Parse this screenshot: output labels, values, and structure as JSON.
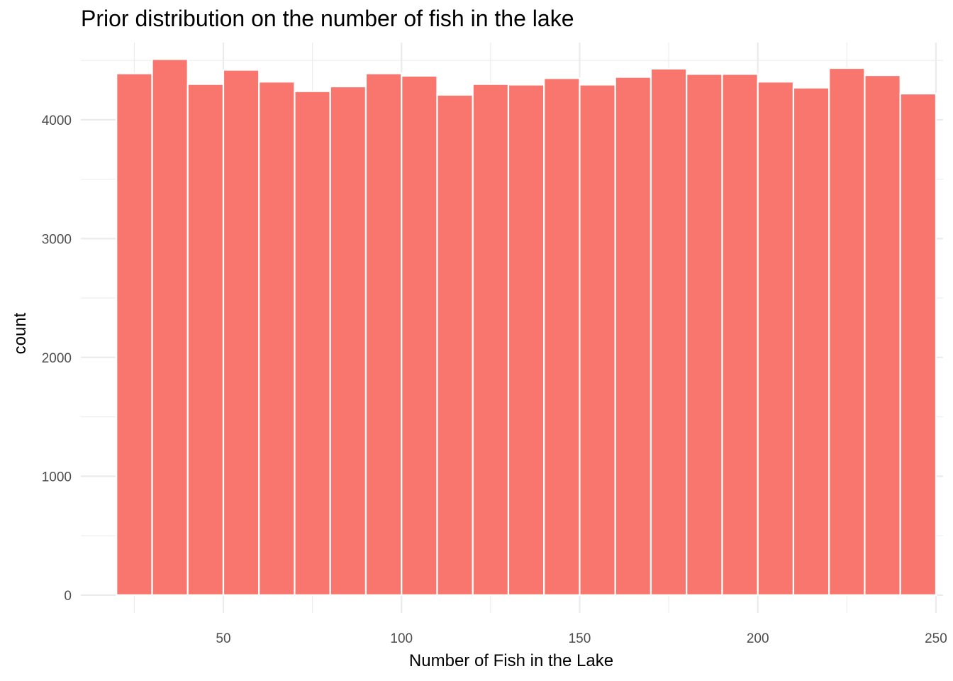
{
  "chart_data": {
    "type": "bar",
    "title": "Prior distribution on the number of fish in the lake",
    "xlabel": "Number of Fish in the Lake",
    "ylabel": "count",
    "bar_color": "#F8766D",
    "bar_outline_color": "#ffffff",
    "grid_color": "#ebebeb",
    "grid": true,
    "xlim": [
      10,
      252
    ],
    "ylim": [
      -150,
      4650
    ],
    "x_ticks": [
      50,
      100,
      150,
      200,
      250
    ],
    "y_ticks": [
      0,
      1000,
      2000,
      3000,
      4000
    ],
    "bin_edges": [
      20,
      30,
      40,
      50,
      60,
      70,
      80,
      90,
      100,
      110,
      120,
      130,
      140,
      150,
      160,
      170,
      180,
      190,
      200,
      210,
      220,
      230,
      240,
      250
    ],
    "values": [
      4390,
      4510,
      4300,
      4420,
      4320,
      4240,
      4280,
      4390,
      4370,
      4210,
      4300,
      4295,
      4350,
      4295,
      4360,
      4430,
      4385,
      4385,
      4320,
      4270,
      4435,
      4375,
      4220
    ]
  }
}
